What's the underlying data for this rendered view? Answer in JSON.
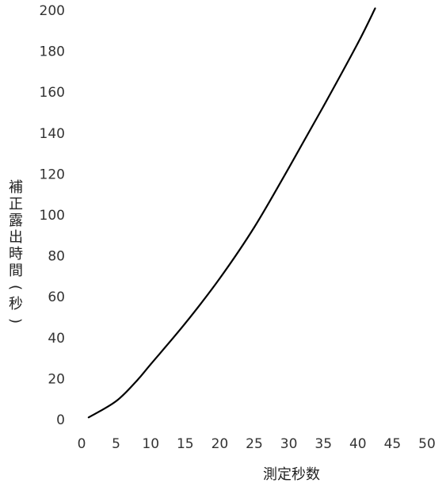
{
  "chart_data": {
    "type": "line",
    "xlabel": "測定秒数",
    "ylabel": "補正露出時間(秒)",
    "xlim": [
      0,
      50
    ],
    "ylim": [
      0,
      200
    ],
    "x_ticks": [
      "0",
      "5",
      "10",
      "15",
      "20",
      "25",
      "30",
      "35",
      "40",
      "45",
      "50"
    ],
    "y_ticks": [
      "0",
      "20",
      "40",
      "60",
      "80",
      "100",
      "120",
      "140",
      "160",
      "180",
      "200"
    ],
    "grid": false,
    "legend": "none",
    "series": [
      {
        "color": "#000000",
        "x": [
          1,
          5,
          8,
          10,
          15,
          20,
          25,
          30,
          35,
          40,
          42.5
        ],
        "y": [
          1,
          9,
          19,
          27,
          47,
          69,
          94,
          123,
          153,
          184,
          201
        ]
      }
    ]
  }
}
